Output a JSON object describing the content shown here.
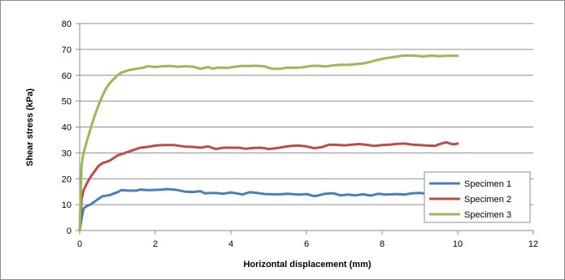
{
  "chart_data": {
    "type": "line",
    "xlabel": "Horizontal displacement (mm)",
    "ylabel": "Shear stress (kPa)",
    "xlim": [
      0,
      12
    ],
    "ylim": [
      0,
      80
    ],
    "x_ticks": [
      0,
      2,
      4,
      6,
      8,
      10,
      12
    ],
    "y_ticks": [
      0,
      10,
      20,
      30,
      40,
      50,
      60,
      70,
      80
    ],
    "grid": "horizontal",
    "legend_position": "bottom-right",
    "series": [
      {
        "name": "Specimen 1",
        "color": "#4a7ebb",
        "points": [
          [
            0,
            0
          ],
          [
            0.05,
            4.5
          ],
          [
            0.1,
            8.5
          ],
          [
            0.2,
            9.5
          ],
          [
            0.3,
            10.2
          ],
          [
            0.4,
            11.2
          ],
          [
            0.5,
            12.3
          ],
          [
            0.6,
            13.2
          ],
          [
            0.8,
            13.7
          ],
          [
            1.0,
            14.8
          ],
          [
            1.1,
            15.6
          ],
          [
            1.3,
            15.4
          ],
          [
            1.5,
            15.4
          ],
          [
            1.6,
            15.8
          ],
          [
            1.8,
            15.6
          ],
          [
            2.0,
            15.7
          ],
          [
            2.2,
            15.8
          ],
          [
            2.3,
            16.0
          ],
          [
            2.5,
            15.8
          ],
          [
            2.6,
            15.6
          ],
          [
            2.8,
            15.0
          ],
          [
            3.0,
            14.9
          ],
          [
            3.2,
            15.2
          ],
          [
            3.3,
            14.4
          ],
          [
            3.6,
            14.5
          ],
          [
            3.8,
            14.2
          ],
          [
            4.0,
            14.7
          ],
          [
            4.2,
            14.2
          ],
          [
            4.3,
            13.9
          ],
          [
            4.5,
            14.8
          ],
          [
            4.7,
            14.5
          ],
          [
            4.9,
            14.1
          ],
          [
            5.1,
            14.0
          ],
          [
            5.3,
            14.0
          ],
          [
            5.5,
            14.2
          ],
          [
            5.8,
            13.9
          ],
          [
            6.0,
            14.1
          ],
          [
            6.2,
            13.3
          ],
          [
            6.3,
            13.5
          ],
          [
            6.5,
            14.2
          ],
          [
            6.7,
            14.4
          ],
          [
            6.9,
            13.6
          ],
          [
            7.1,
            13.9
          ],
          [
            7.3,
            13.6
          ],
          [
            7.5,
            14.0
          ],
          [
            7.7,
            13.5
          ],
          [
            7.9,
            14.2
          ],
          [
            8.1,
            13.9
          ],
          [
            8.4,
            14.1
          ],
          [
            8.6,
            13.9
          ],
          [
            8.8,
            14.4
          ],
          [
            9.0,
            14.5
          ],
          [
            9.2,
            14.2
          ],
          [
            9.4,
            14.5
          ],
          [
            9.6,
            14.0
          ],
          [
            9.7,
            14.8
          ],
          [
            9.8,
            13.8
          ],
          [
            9.9,
            14.3
          ],
          [
            10.0,
            14.2
          ]
        ]
      },
      {
        "name": "Specimen 2",
        "color": "#be4b48",
        "points": [
          [
            0,
            0
          ],
          [
            0.05,
            12.0
          ],
          [
            0.1,
            15.5
          ],
          [
            0.2,
            18.5
          ],
          [
            0.3,
            21.0
          ],
          [
            0.4,
            23.0
          ],
          [
            0.5,
            25.0
          ],
          [
            0.6,
            26.0
          ],
          [
            0.7,
            26.5
          ],
          [
            0.8,
            27.0
          ],
          [
            0.9,
            28.0
          ],
          [
            1.0,
            29.0
          ],
          [
            1.2,
            30.0
          ],
          [
            1.4,
            31.0
          ],
          [
            1.6,
            32.0
          ],
          [
            1.8,
            32.3
          ],
          [
            2.0,
            32.8
          ],
          [
            2.2,
            33.0
          ],
          [
            2.5,
            33.0
          ],
          [
            2.8,
            32.4
          ],
          [
            3.0,
            32.3
          ],
          [
            3.2,
            32.0
          ],
          [
            3.4,
            32.5
          ],
          [
            3.6,
            31.5
          ],
          [
            3.8,
            32.0
          ],
          [
            4.0,
            32.0
          ],
          [
            4.2,
            32.0
          ],
          [
            4.4,
            31.6
          ],
          [
            4.6,
            31.9
          ],
          [
            4.8,
            32.0
          ],
          [
            5.0,
            31.5
          ],
          [
            5.2,
            31.8
          ],
          [
            5.4,
            32.3
          ],
          [
            5.6,
            32.7
          ],
          [
            5.8,
            32.8
          ],
          [
            6.0,
            32.5
          ],
          [
            6.2,
            31.8
          ],
          [
            6.4,
            32.2
          ],
          [
            6.6,
            33.2
          ],
          [
            6.8,
            33.1
          ],
          [
            7.0,
            32.9
          ],
          [
            7.2,
            33.2
          ],
          [
            7.4,
            33.4
          ],
          [
            7.6,
            33.1
          ],
          [
            7.8,
            32.7
          ],
          [
            8.0,
            33.0
          ],
          [
            8.2,
            33.2
          ],
          [
            8.4,
            33.5
          ],
          [
            8.6,
            33.6
          ],
          [
            8.8,
            33.2
          ],
          [
            9.0,
            33.0
          ],
          [
            9.2,
            32.8
          ],
          [
            9.4,
            32.7
          ],
          [
            9.5,
            33.3
          ],
          [
            9.6,
            33.7
          ],
          [
            9.7,
            34.1
          ],
          [
            9.8,
            33.6
          ],
          [
            9.9,
            33.3
          ],
          [
            10.0,
            33.6
          ]
        ]
      },
      {
        "name": "Specimen 3",
        "color": "#98b954",
        "points": [
          [
            0,
            0
          ],
          [
            0.05,
            25.0
          ],
          [
            0.1,
            30.0
          ],
          [
            0.2,
            35.0
          ],
          [
            0.3,
            40.0
          ],
          [
            0.4,
            44.5
          ],
          [
            0.5,
            48.5
          ],
          [
            0.6,
            52.0
          ],
          [
            0.7,
            55.0
          ],
          [
            0.8,
            57.0
          ],
          [
            0.9,
            58.5
          ],
          [
            1.0,
            60.0
          ],
          [
            1.1,
            61.0
          ],
          [
            1.3,
            62.0
          ],
          [
            1.5,
            62.5
          ],
          [
            1.7,
            63.0
          ],
          [
            1.8,
            63.5
          ],
          [
            2.0,
            63.2
          ],
          [
            2.2,
            63.5
          ],
          [
            2.4,
            63.6
          ],
          [
            2.6,
            63.3
          ],
          [
            2.8,
            63.5
          ],
          [
            3.0,
            63.3
          ],
          [
            3.2,
            62.5
          ],
          [
            3.4,
            63.2
          ],
          [
            3.5,
            62.6
          ],
          [
            3.7,
            63.0
          ],
          [
            3.9,
            62.8
          ],
          [
            4.1,
            63.3
          ],
          [
            4.3,
            63.6
          ],
          [
            4.5,
            63.6
          ],
          [
            4.7,
            63.7
          ],
          [
            4.9,
            63.4
          ],
          [
            5.1,
            62.5
          ],
          [
            5.3,
            62.5
          ],
          [
            5.5,
            63.0
          ],
          [
            5.7,
            62.9
          ],
          [
            5.9,
            63.1
          ],
          [
            6.1,
            63.6
          ],
          [
            6.3,
            63.7
          ],
          [
            6.5,
            63.4
          ],
          [
            6.7,
            63.8
          ],
          [
            6.9,
            64.1
          ],
          [
            7.1,
            64.0
          ],
          [
            7.3,
            64.3
          ],
          [
            7.5,
            64.6
          ],
          [
            7.7,
            65.2
          ],
          [
            7.9,
            66.0
          ],
          [
            8.1,
            66.6
          ],
          [
            8.3,
            67.0
          ],
          [
            8.5,
            67.5
          ],
          [
            8.7,
            67.7
          ],
          [
            8.9,
            67.5
          ],
          [
            9.1,
            67.3
          ],
          [
            9.3,
            67.6
          ],
          [
            9.5,
            67.4
          ],
          [
            9.7,
            67.5
          ],
          [
            9.9,
            67.5
          ],
          [
            10.0,
            67.5
          ]
        ]
      }
    ]
  }
}
